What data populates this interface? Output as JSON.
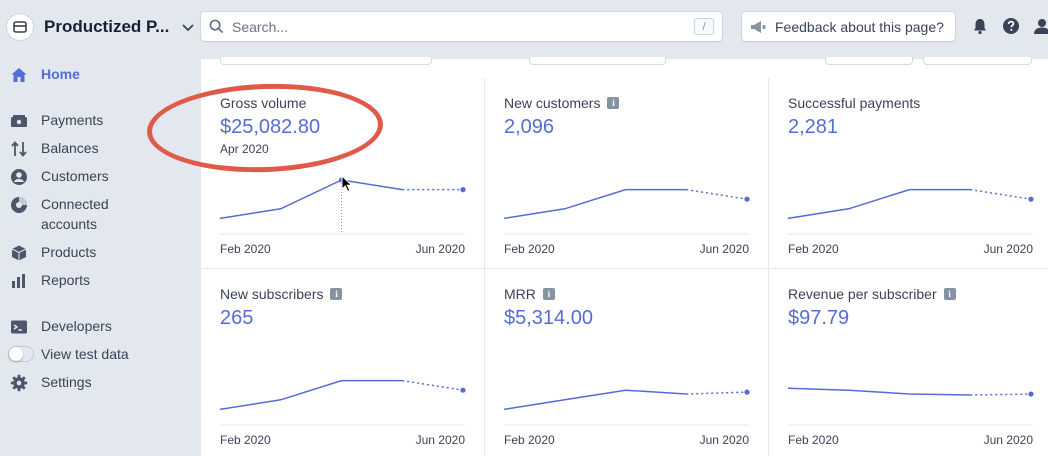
{
  "account": {
    "name": "Productized P...",
    "logo_icon": "store-icon"
  },
  "search": {
    "placeholder": "Search...",
    "shortcut": "/"
  },
  "feedback": {
    "label": "Feedback about this page?"
  },
  "nav": {
    "home": "Home",
    "payments": "Payments",
    "balances": "Balances",
    "customers": "Customers",
    "connected_line1": "Connected",
    "connected_line2": "accounts",
    "products": "Products",
    "reports": "Reports",
    "developers": "Developers",
    "test_data": "View test data",
    "settings": "Settings"
  },
  "colors": {
    "accent": "#556cd6",
    "annotation": "#e05a4a",
    "sidebar_bg": "#e3e8ee"
  },
  "tiles": [
    {
      "title": "Gross volume",
      "value": "$25,082.80",
      "sub": "Apr 2020",
      "info": false,
      "x_start": "Feb 2020",
      "x_end": "Jun 2020",
      "series": [
        1,
        2,
        5,
        4,
        4
      ],
      "hover_index": 2
    },
    {
      "title": "New customers",
      "value": "2,096",
      "info": true,
      "x_start": "Feb 2020",
      "x_end": "Jun 2020",
      "series": [
        1,
        2,
        4,
        4,
        3
      ]
    },
    {
      "title": "Successful payments",
      "value": "2,281",
      "info": false,
      "x_start": "Feb 2020",
      "x_end": "Jun 2020",
      "series": [
        1,
        2,
        4,
        4,
        3
      ]
    },
    {
      "title": "New subscribers",
      "value": "265",
      "info": true,
      "x_start": "Feb 2020",
      "x_end": "Jun 2020",
      "series": [
        1,
        2,
        4,
        4,
        3
      ]
    },
    {
      "title": "MRR",
      "value": "$5,314.00",
      "info": true,
      "x_start": "Feb 2020",
      "x_end": "Jun 2020",
      "series": [
        1,
        2,
        3,
        2.6,
        2.8
      ]
    },
    {
      "title": "Revenue per subscriber",
      "value": "$97.79",
      "info": true,
      "x_start": "Feb 2020",
      "x_end": "Jun 2020",
      "series": [
        3.2,
        3,
        2.6,
        2.5,
        2.6
      ]
    }
  ]
}
